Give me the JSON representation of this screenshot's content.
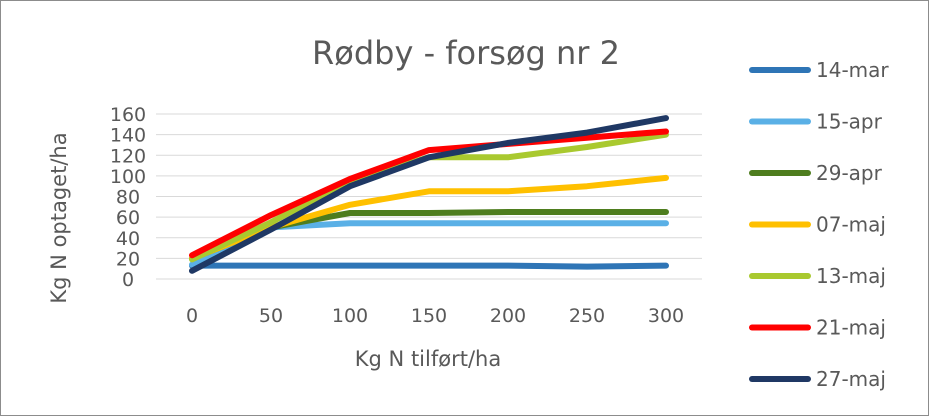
{
  "chart_data": {
    "type": "line",
    "title": "Rødby - forsøg nr 2",
    "xlabel": "Kg N tilført/ha",
    "ylabel": "Kg N optaget/ha",
    "x": [
      0,
      50,
      100,
      150,
      200,
      250,
      300
    ],
    "x_tick_labels": [
      "0",
      "50",
      "100",
      "150",
      "200",
      "250",
      "300"
    ],
    "y_ticks": [
      0,
      20,
      40,
      60,
      80,
      100,
      120,
      140,
      160
    ],
    "y_tick_labels": [
      "0",
      "20",
      "40",
      "60",
      "80",
      "100",
      "120",
      "140",
      "160"
    ],
    "ylim": [
      0,
      160
    ],
    "grid": true,
    "legend_position": "right",
    "series": [
      {
        "name": "14-mar",
        "color": "#2e75b6",
        "values": [
          13,
          13,
          13,
          13,
          13,
          12,
          13
        ]
      },
      {
        "name": "15-apr",
        "color": "#5ab0e6",
        "values": [
          14,
          50,
          54,
          54,
          54,
          54,
          54
        ]
      },
      {
        "name": "29-apr",
        "color": "#4e7d1e",
        "values": [
          20,
          50,
          64,
          64,
          65,
          65,
          65
        ]
      },
      {
        "name": "07-maj",
        "color": "#ffc000",
        "values": [
          20,
          50,
          72,
          85,
          85,
          90,
          98
        ]
      },
      {
        "name": "13-maj",
        "color": "#a9c92f",
        "values": [
          19,
          55,
          95,
          118,
          118,
          128,
          140
        ]
      },
      {
        "name": "21-maj",
        "color": "#ff0000",
        "values": [
          23,
          62,
          97,
          125,
          131,
          137,
          143
        ]
      },
      {
        "name": "27-maj",
        "color": "#1f3864",
        "values": [
          8,
          48,
          90,
          118,
          132,
          142,
          156
        ]
      }
    ]
  }
}
